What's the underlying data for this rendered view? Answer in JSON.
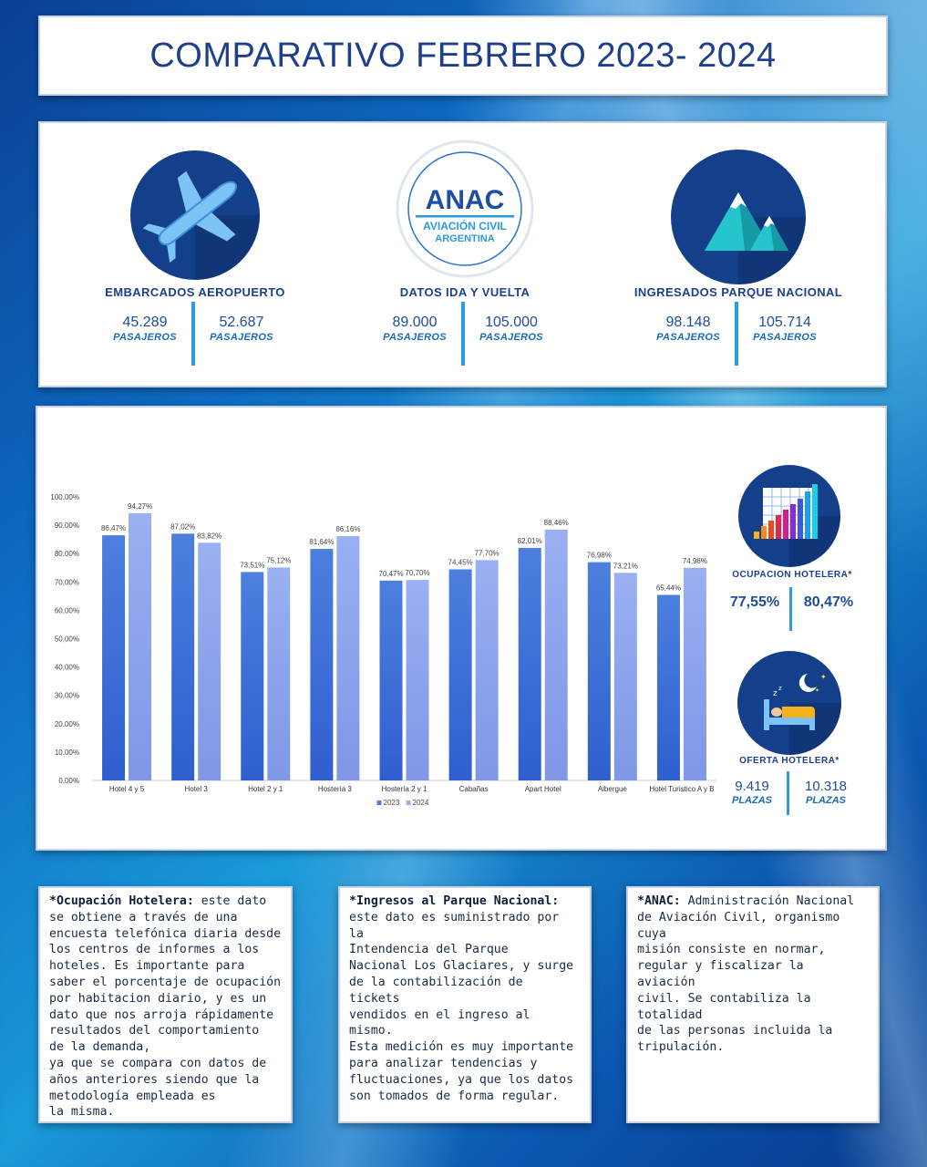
{
  "title": "COMPARATIVO FEBRERO 2023- 2024",
  "stats": [
    {
      "label": "EMBARCADOS AEROPUERTO",
      "value_2023": "45.289",
      "value_2024": "52.687",
      "unit": "PASAJEROS",
      "icon": "airplane-icon"
    },
    {
      "label": "DATOS IDA Y VUELTA",
      "value_2023": "89.000",
      "value_2024": "105.000",
      "unit": "PASAJEROS",
      "icon": "anac-logo"
    },
    {
      "label": "INGRESADOS PARQUE NACIONAL",
      "value_2023": "98.148",
      "value_2024": "105.714",
      "unit": "PASAJEROS",
      "icon": "mountains-icon"
    }
  ],
  "anac_logo": {
    "line1": "ANAC",
    "line2": "AVIACIÓN CIVIL",
    "line3": "ARGENTINA"
  },
  "occupancy": {
    "label": "OCUPACION HOTELERA*",
    "value_2023": "77,55%",
    "value_2024": "80,47%",
    "icon": "bar-chart-icon"
  },
  "offer": {
    "label": "OFERTA HOTELERA*",
    "value_2023": "9.419",
    "value_2024": "10.318",
    "unit": "PLAZAS",
    "icon": "bed-icon"
  },
  "chart_data": {
    "type": "bar",
    "categories": [
      "Hotel 4 y 5",
      "Hotel 3",
      "Hotel 2 y 1",
      "Hostería 3",
      "Hostería 2 y 1",
      "Cabañas",
      "Apart Hotel",
      "Albergue",
      "Hotel Turistico A y B"
    ],
    "series": [
      {
        "name": "2023",
        "values": [
          86.47,
          87.02,
          73.51,
          81.64,
          70.47,
          74.45,
          82.01,
          76.98,
          65.44
        ],
        "labels": [
          "86,47%",
          "87,02%",
          "73,51%",
          "81,64%",
          "70,47%",
          "74,45%",
          "82,01%",
          "76,98%",
          "65,44%"
        ],
        "color": "#4d7fde"
      },
      {
        "name": "2024",
        "values": [
          94.27,
          83.82,
          75.12,
          86.16,
          70.7,
          77.7,
          88.46,
          73.21,
          74.98
        ],
        "labels": [
          "94,27%",
          "83,82%",
          "75,12%",
          "86,16%",
          "70,70%",
          "77,70%",
          "88,46%",
          "73,21%",
          "74,98%"
        ],
        "color": "#9ab0f2"
      }
    ],
    "ylim": [
      0,
      100
    ],
    "yticks": [
      "0,00%",
      "10,00%",
      "20,00%",
      "30,00%",
      "40,00%",
      "50,00%",
      "60,00%",
      "70,00%",
      "80,00%",
      "90,00%",
      "100,00%"
    ],
    "legend": "bottom-center",
    "grid": false
  },
  "notes": [
    {
      "heading": "*Ocupación Hotelera:",
      "lines": [
        "*Ocupación Hotelera: este dato",
        "se obtiene a través de una",
        "encuesta telefónica diaria desde",
        "los centros de informes a los",
        "hoteles. Es importante para",
        "saber el porcentaje de ocupación",
        "por habitacion diario, y es un",
        "dato que nos arroja rápidamente",
        "resultados del comportamiento",
        "de la demanda,",
        "ya que se compara con datos de",
        "años anteriores siendo que la",
        "metodología empleada es",
        "la misma."
      ]
    },
    {
      "heading": "*Ingresos al Parque Nacional:",
      "lines": [
        "*Ingresos al Parque Nacional:",
        "este dato es suministrado por la",
        "Intendencia del Parque",
        "Nacional Los Glaciares, y surge",
        "de la contabilización de tickets",
        "vendidos en el ingreso al mismo.",
        "Esta medición es muy importante",
        "para analizar tendencias y",
        "fluctuaciones, ya que los datos",
        "son tomados de forma regular."
      ]
    },
    {
      "heading": "*ANAC:",
      "lines": [
        "*ANAC: Administración Nacional",
        "de Aviación Civil, organismo cuya",
        "misión consiste en normar,",
        "regular y fiscalizar la aviación",
        "civil. Se contabiliza la totalidad",
        "de las personas incluida la",
        "tripulación."
      ]
    }
  ]
}
